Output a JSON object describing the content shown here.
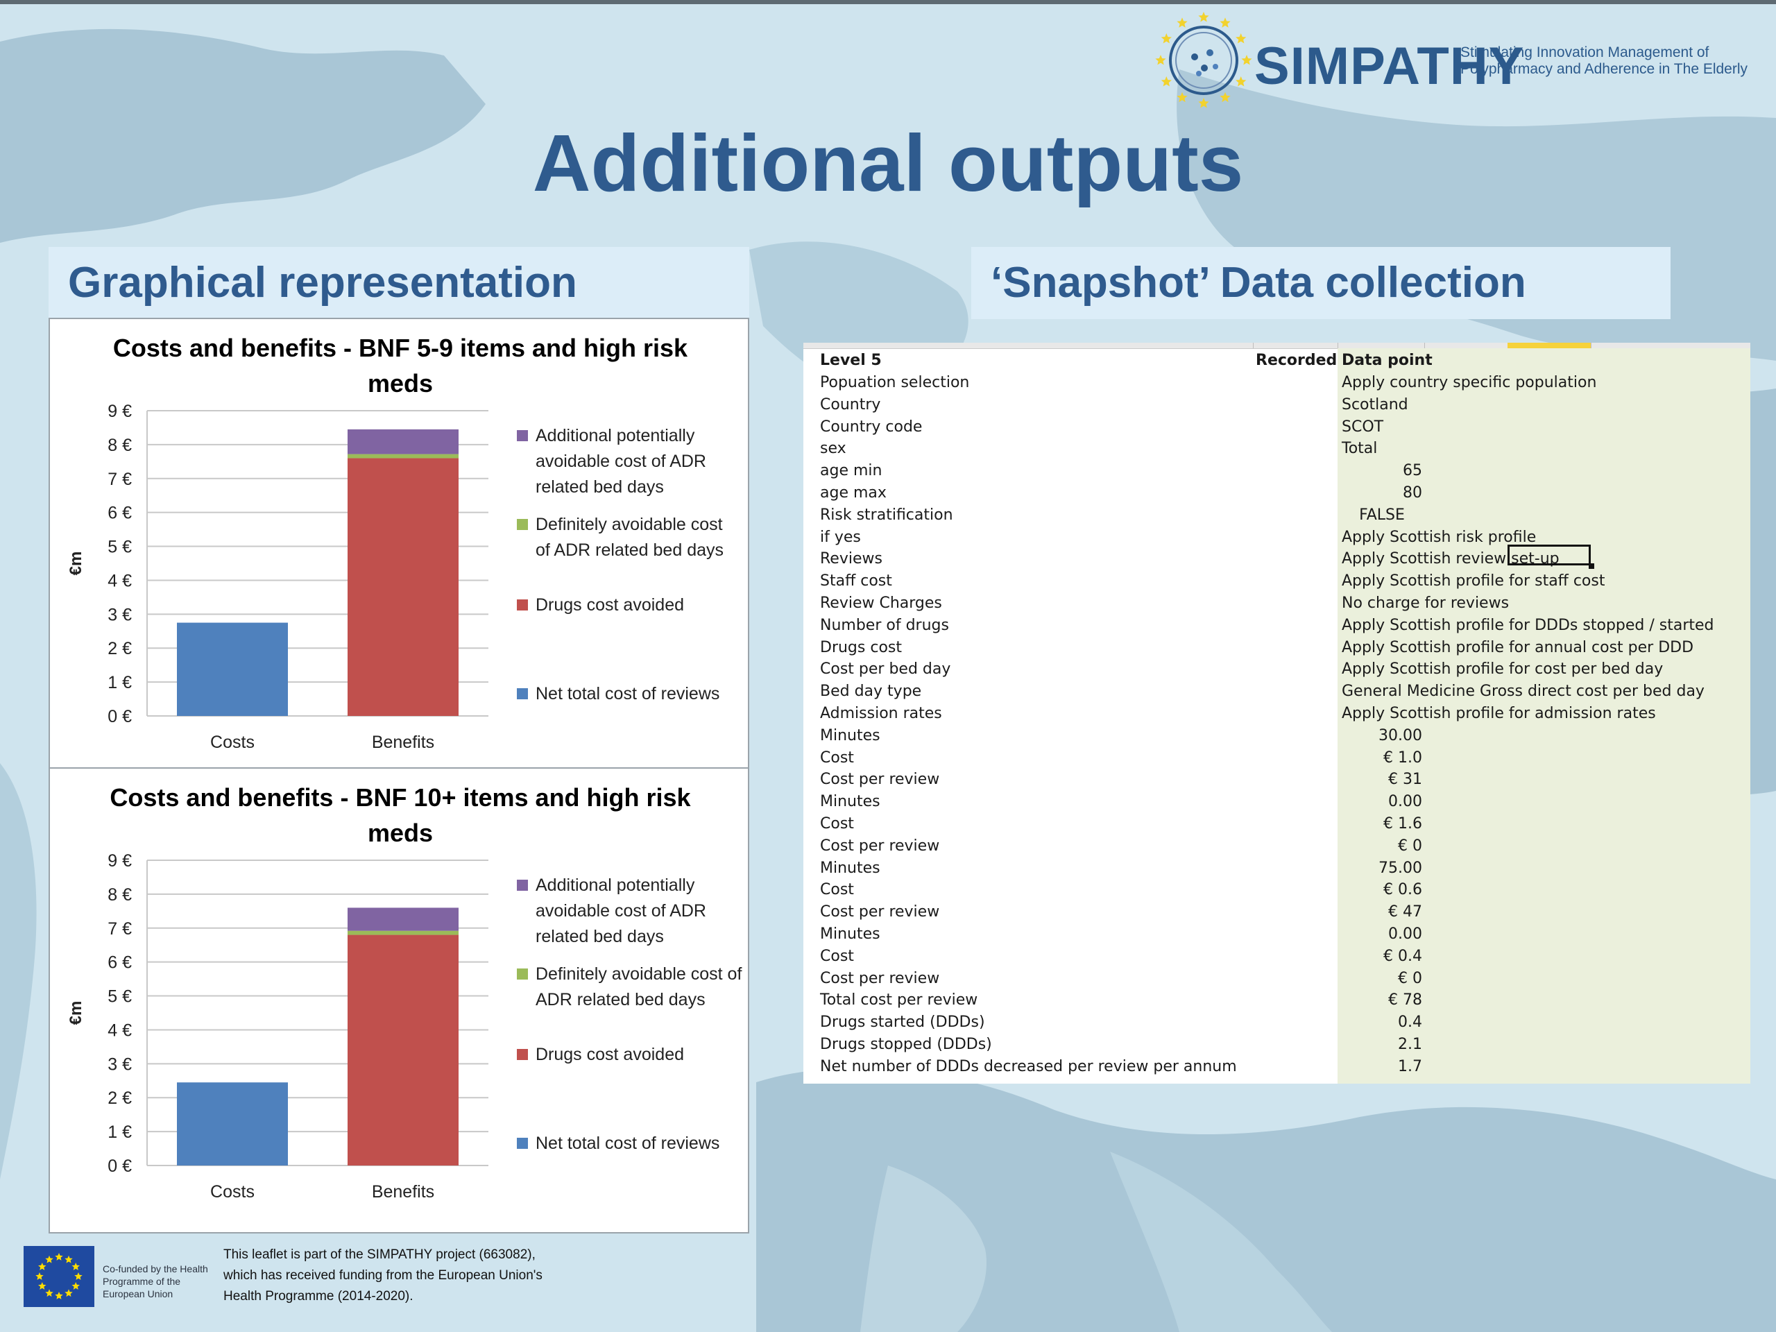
{
  "colors": {
    "title_blue": "#2f5b8e",
    "costs_blue": "#4f81bd",
    "drugs_red": "#c0504d",
    "definitely_green": "#9bbb59",
    "additional_purple": "#8064a2",
    "sheet_green": "#ebf0dc"
  },
  "logo": {
    "icon": "star-circle-logo-icon",
    "name": "SIMPATHY",
    "tagline_line1": "Stimulating Innovation Management of",
    "tagline_line2": "Polypharmacy and Adherence in The Elderly"
  },
  "title": "Additional outputs",
  "sections": {
    "left_heading": "Graphical representation",
    "right_heading": "‘Snapshot’ Data collection"
  },
  "chart_data": [
    {
      "type": "bar",
      "stacked": true,
      "title_line1": "Costs and benefits - BNF 5-9 items and high risk",
      "title_line2": "meds",
      "ylabel": "€m",
      "ylim": [
        0,
        9
      ],
      "yticks": [
        "0 €",
        "1 €",
        "2 €",
        "3 €",
        "4 €",
        "5 €",
        "6 €",
        "7 €",
        "8 €",
        "9 €"
      ],
      "categories": [
        "Costs",
        "Benefits"
      ],
      "grid": true,
      "legend_position": "right",
      "series": [
        {
          "name": "Net total cost of reviews",
          "legend_lines": [
            "Net total cost of reviews"
          ],
          "color": "#4f81bd",
          "values": [
            2.75,
            0
          ]
        },
        {
          "name": "Drugs cost avoided",
          "legend_lines": [
            "Drugs cost avoided"
          ],
          "color": "#c0504d",
          "values": [
            0,
            7.6
          ]
        },
        {
          "name": "Definitely avoidable cost of ADR related bed days",
          "legend_lines": [
            "Definitely avoidable cost",
            "of ADR related bed days"
          ],
          "color": "#9bbb59",
          "values": [
            0,
            0.12
          ]
        },
        {
          "name": "Additional potentially avoidable cost of ADR related bed days",
          "legend_lines": [
            "Additional potentially",
            "avoidable cost of ADR",
            "related bed days"
          ],
          "color": "#8064a2",
          "values": [
            0,
            0.73
          ]
        }
      ]
    },
    {
      "type": "bar",
      "stacked": true,
      "title_line1": "Costs and benefits - BNF 10+ items and high risk",
      "title_line2": "meds",
      "ylabel": "€m",
      "ylim": [
        0,
        9
      ],
      "yticks": [
        "0 €",
        "1 €",
        "2 €",
        "3 €",
        "4 €",
        "5 €",
        "6 €",
        "7 €",
        "8 €",
        "9 €"
      ],
      "categories": [
        "Costs",
        "Benefits"
      ],
      "grid": true,
      "legend_position": "right",
      "series": [
        {
          "name": "Net total cost of reviews",
          "legend_lines": [
            "Net total cost of reviews"
          ],
          "color": "#4f81bd",
          "values": [
            2.45,
            0
          ]
        },
        {
          "name": "Drugs cost avoided",
          "legend_lines": [
            "Drugs cost avoided"
          ],
          "color": "#c0504d",
          "values": [
            0,
            6.8
          ]
        },
        {
          "name": "Definitely avoidable cost of ADR related bed days",
          "legend_lines": [
            "Definitely avoidable cost of",
            "ADR related bed days"
          ],
          "color": "#9bbb59",
          "values": [
            0,
            0.12
          ]
        },
        {
          "name": "Additional potentially avoidable cost of ADR related bed days",
          "legend_lines": [
            "Additional potentially",
            "avoidable cost of ADR",
            "related bed days"
          ],
          "color": "#8064a2",
          "values": [
            0,
            0.68
          ]
        }
      ]
    }
  ],
  "sheet": {
    "headers": {
      "a": "Level 5",
      "b": "Recorded",
      "c": "Data point"
    },
    "selected_cell": "set-up",
    "rows": [
      {
        "a": "Popuation selection",
        "c": "Apply country specific population"
      },
      {
        "a": "Country",
        "c": "Scotland"
      },
      {
        "a": "Country code",
        "c": "SCOT"
      },
      {
        "a": "sex",
        "c": "Total"
      },
      {
        "a": "age min",
        "n": "65"
      },
      {
        "a": "age max",
        "n": "80"
      },
      {
        "a": "Risk stratification",
        "n": "FALSE",
        "center": true
      },
      {
        "a": "if yes",
        "c": "Apply Scottish risk profile"
      },
      {
        "a": "Reviews",
        "c": "Apply Scottish review set-up"
      },
      {
        "a": "Staff cost",
        "c": "Apply Scottish profile for staff cost"
      },
      {
        "a": "Review Charges",
        "c": "No charge for reviews"
      },
      {
        "a": "Number of drugs",
        "c": "Apply Scottish profile for DDDs stopped / started"
      },
      {
        "a": "Drugs cost",
        "c": "Apply Scottish profile for annual cost per DDD"
      },
      {
        "a": "Cost per bed day",
        "c": "Apply Scottish profile for cost per bed day"
      },
      {
        "a": "Bed day type",
        "c": "General Medicine Gross direct cost per bed day"
      },
      {
        "a": "Admission rates",
        "c": "Apply Scottish profile for admission rates"
      },
      {
        "a": "Minutes",
        "n": "30.00"
      },
      {
        "a": "Cost",
        "n": "€ 1.0"
      },
      {
        "a": "Cost per review",
        "n": "€ 31"
      },
      {
        "a": "Minutes",
        "n": "0.00"
      },
      {
        "a": "Cost",
        "n": "€ 1.6"
      },
      {
        "a": "Cost per review",
        "n": "€ 0"
      },
      {
        "a": "Minutes",
        "n": "75.00"
      },
      {
        "a": "Cost",
        "n": "€ 0.6"
      },
      {
        "a": "Cost per review",
        "n": "€ 47"
      },
      {
        "a": "Minutes",
        "n": "0.00"
      },
      {
        "a": "Cost",
        "n": "€ 0.4"
      },
      {
        "a": "Cost per review",
        "n": "€ 0"
      },
      {
        "a": "Total cost per review",
        "n": "€ 78"
      },
      {
        "a": "Drugs started (DDDs)",
        "n": "0.4"
      },
      {
        "a": "Drugs stopped (DDDs)",
        "n": "2.1"
      },
      {
        "a": "Net number of DDDs decreased per review per annum",
        "n": "1.7"
      }
    ]
  },
  "footer": {
    "eu_flag_icon": "eu-flag-icon",
    "cofunded": "Co-funded by the Health Programme of the European Union",
    "leaflet": "This leaflet is part of the SIMPATHY project (663082), which has received funding from the European Union's Health Programme (2014-2020)."
  }
}
